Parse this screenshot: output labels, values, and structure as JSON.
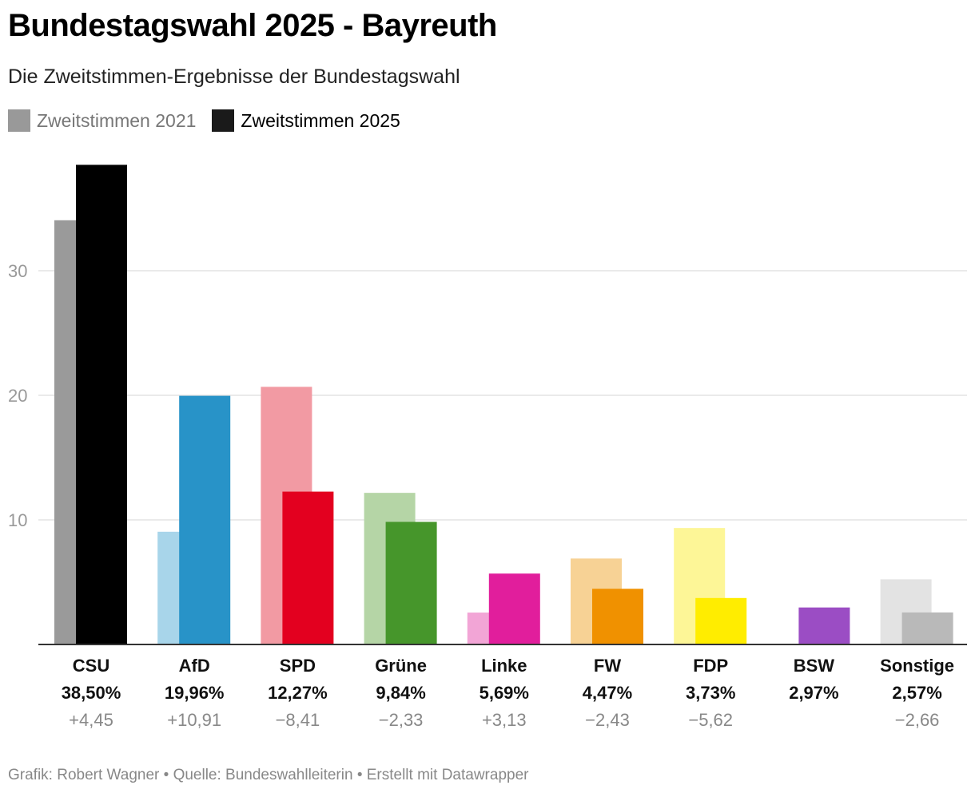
{
  "header": {
    "title": "Bundestagswahl 2025 - Bayreuth",
    "subtitle": "Die Zweitstimmen-Ergebnisse der Bundestagswahl"
  },
  "legend": [
    {
      "label": "Zweitstimmen 2021",
      "color": "#999999",
      "text_color": "#777777"
    },
    {
      "label": "Zweitstimmen 2025",
      "color": "#1a1a1a",
      "text_color": "#000000"
    }
  ],
  "chart_data": {
    "type": "bar",
    "ylim": [
      0,
      40
    ],
    "yticks": [
      10,
      20,
      30
    ],
    "ytick_labels": [
      "10",
      "20",
      "30"
    ],
    "grid": true,
    "legend_position": "top-left",
    "categories": [
      "CSU",
      "AfD",
      "SPD",
      "Grüne",
      "Linke",
      "FW",
      "FDP",
      "BSW",
      "Sonstige"
    ],
    "series": [
      {
        "name": "Zweitstimmen 2021",
        "values": [
          34.05,
          9.05,
          20.68,
          12.17,
          2.56,
          6.9,
          9.35,
          null,
          5.23
        ]
      },
      {
        "name": "Zweitstimmen 2025",
        "values": [
          38.5,
          19.96,
          12.27,
          9.84,
          5.69,
          4.47,
          3.73,
          2.97,
          2.57
        ]
      }
    ],
    "value_labels": [
      "38,50%",
      "19,96%",
      "12,27%",
      "9,84%",
      "5,69%",
      "4,47%",
      "3,73%",
      "2,97%",
      "2,57%"
    ],
    "change_labels": [
      "+4,45",
      "+10,91",
      "−8,41",
      "−2,33",
      "+3,13",
      "−2,43",
      "−5,62",
      "",
      "−2,66"
    ],
    "colors_2025": [
      "#000000",
      "#2893c8",
      "#e3001f",
      "#46962b",
      "#e11e9c",
      "#f09100",
      "#ffed00",
      "#9b4dc4",
      "#b9b9b9"
    ],
    "colors_2021": [
      "#9a9a9a",
      "#a8d5ea",
      "#f29aa3",
      "#b5d5a6",
      "#f2a5d6",
      "#f7d295",
      "#fdf697",
      null,
      "#e3e3e3"
    ]
  },
  "footer": {
    "credit": "Grafik: Robert Wagner • Quelle: Bundeswahlleiterin • Erstellt mit Datawrapper"
  }
}
